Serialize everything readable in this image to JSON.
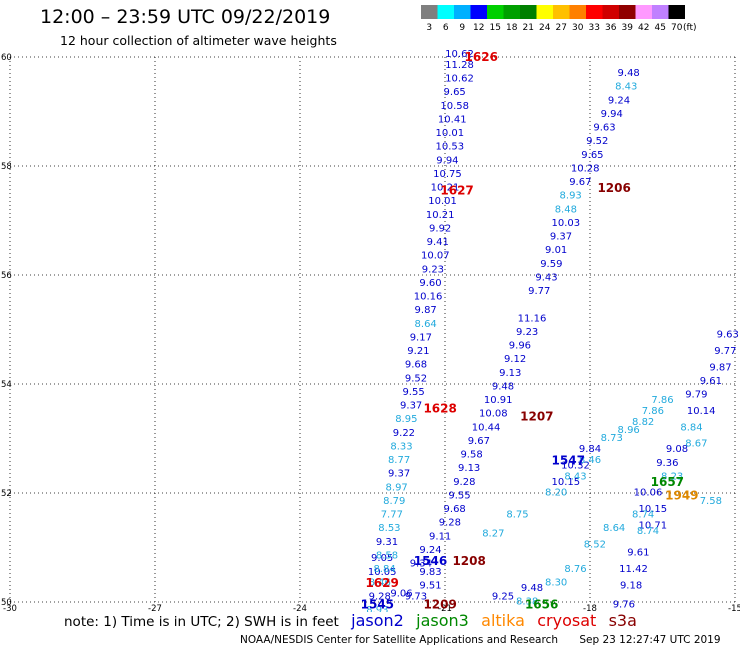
{
  "title": "12:00 – 23:59 UTC 09/22/2019",
  "subtitle": "12 hour collection of altimeter wave heights",
  "color_scale": {
    "labels": [
      "3",
      "6",
      "9",
      "12",
      "15",
      "18",
      "21",
      "24",
      "27",
      "30",
      "33",
      "36",
      "39",
      "42",
      "45",
      "70"
    ],
    "unit": "(ft)",
    "colors": [
      "#7f7f7f",
      "#00ffff",
      "#00b0ff",
      "#0000ff",
      "#00d000",
      "#00a000",
      "#008000",
      "#ffff00",
      "#ffc000",
      "#ff8000",
      "#ff0000",
      "#d00000",
      "#900000",
      "#ff99ff",
      "#c080ff",
      "#000000"
    ]
  },
  "axes": {
    "x_ticks": [
      "-30",
      "-27",
      "-24",
      "-21",
      "-18",
      "-15"
    ],
    "y_ticks": [
      "60",
      "58",
      "56",
      "54",
      "52",
      "50"
    ],
    "xlim": [
      -30,
      -15
    ],
    "ylim": [
      50,
      60
    ]
  },
  "passes": [
    {
      "sat": "jason2",
      "color": "#0000cc",
      "points": [
        [
          -20.7,
          60,
          "10.62"
        ],
        [
          -20.7,
          59.8,
          "11.28"
        ],
        [
          -20.7,
          59.55,
          "10.62"
        ],
        [
          -20.8,
          59.3,
          "9.65"
        ],
        [
          -20.8,
          59.05,
          "10.58"
        ],
        [
          -20.85,
          58.8,
          "10.41"
        ],
        [
          -20.9,
          58.55,
          "10.01"
        ],
        [
          -20.9,
          58.3,
          "10.53"
        ],
        [
          -20.95,
          58.05,
          "9.94"
        ],
        [
          -20.95,
          57.8,
          "10.75"
        ],
        [
          -21.0,
          57.55,
          "10.21"
        ],
        [
          -21.05,
          57.3,
          "10.01"
        ],
        [
          -21.1,
          57.05,
          "10.21"
        ],
        [
          -21.1,
          56.8,
          "9.92"
        ],
        [
          -21.15,
          56.55,
          "9.41"
        ],
        [
          -21.2,
          56.3,
          "10.07"
        ],
        [
          -21.25,
          56.05,
          "9.23"
        ],
        [
          -21.3,
          55.8,
          "9.60"
        ],
        [
          -21.35,
          55.55,
          "10.16"
        ],
        [
          -21.4,
          55.3,
          "9.87"
        ],
        [
          -21.5,
          54.8,
          "9.17"
        ],
        [
          -21.55,
          54.55,
          "9.21"
        ],
        [
          -21.6,
          54.3,
          "9.68"
        ],
        [
          -21.6,
          54.05,
          "9.52"
        ],
        [
          -21.65,
          53.8,
          "9.55"
        ],
        [
          -21.7,
          53.55,
          "9.37"
        ],
        [
          -21.85,
          53.05,
          "9.22"
        ],
        [
          -21.95,
          52.3,
          "9.37"
        ],
        [
          -22.2,
          51.05,
          "9.31"
        ],
        [
          -22.3,
          50.75,
          "9.05"
        ],
        [
          -22.3,
          50.5,
          "10.05"
        ],
        [
          -22.35,
          50.05,
          "9.28"
        ]
      ]
    },
    {
      "sat": "jason3",
      "color": "#22aadd",
      "points": [
        [
          -21.4,
          55.05,
          "8.64"
        ],
        [
          -21.8,
          53.3,
          "8.95"
        ],
        [
          -21.9,
          52.8,
          "8.33"
        ],
        [
          -21.95,
          52.55,
          "8.77"
        ],
        [
          -22.0,
          52.05,
          "8.97"
        ],
        [
          -22.05,
          51.8,
          "8.79"
        ],
        [
          -22.1,
          51.55,
          "7.77"
        ],
        [
          -22.15,
          51.3,
          "8.53"
        ],
        [
          -22.2,
          50.8,
          "8.58"
        ],
        [
          -22.25,
          50.55,
          "8.84"
        ],
        [
          -22.35,
          50.3,
          "8.46"
        ],
        [
          -22.4,
          49.8,
          "8.93"
        ]
      ]
    },
    {
      "sat": "jason2",
      "color": "#0000cc",
      "points": [
        [
          -17.2,
          59.65,
          "9.48"
        ],
        [
          -17.4,
          59.15,
          "9.24"
        ],
        [
          -17.55,
          58.9,
          "9.94"
        ],
        [
          -17.7,
          58.65,
          "9.63"
        ],
        [
          -17.85,
          58.4,
          "9.52"
        ],
        [
          -17.95,
          58.15,
          "9.65"
        ],
        [
          -18.1,
          57.9,
          "10.28"
        ],
        [
          -18.2,
          57.65,
          "9.67"
        ],
        [
          -18.5,
          56.9,
          "10.03"
        ],
        [
          -18.6,
          56.65,
          "9.37"
        ],
        [
          -18.7,
          56.4,
          "9.01"
        ],
        [
          -18.8,
          56.15,
          "9.59"
        ],
        [
          -18.9,
          55.9,
          "9.43"
        ],
        [
          -19.05,
          55.65,
          "9.77"
        ],
        [
          -19.2,
          55.15,
          "11.16"
        ],
        [
          -19.3,
          54.9,
          "9.23"
        ],
        [
          -19.45,
          54.65,
          "9.96"
        ],
        [
          -19.55,
          54.4,
          "9.12"
        ],
        [
          -19.65,
          54.15,
          "9.13"
        ],
        [
          -19.8,
          53.9,
          "9.48"
        ],
        [
          -19.9,
          53.65,
          "10.91"
        ],
        [
          -20.0,
          53.4,
          "10.08"
        ],
        [
          -20.15,
          53.15,
          "10.44"
        ],
        [
          -20.3,
          52.9,
          "9.67"
        ],
        [
          -20.45,
          52.65,
          "9.58"
        ],
        [
          -20.5,
          52.4,
          "9.13"
        ],
        [
          -20.6,
          52.15,
          "9.28"
        ],
        [
          -20.7,
          51.9,
          "9.55"
        ],
        [
          -20.8,
          51.65,
          "9.68"
        ],
        [
          -20.9,
          51.4,
          "9.28"
        ],
        [
          -21.1,
          51.15,
          "9.11"
        ],
        [
          -21.3,
          50.9,
          "9.24"
        ],
        [
          -21.5,
          50.65,
          "9.34"
        ]
      ]
    },
    {
      "sat": "jason3",
      "color": "#22aadd",
      "points": [
        [
          -17.25,
          59.4,
          "8.43"
        ],
        [
          -18.4,
          57.4,
          "8.93"
        ],
        [
          -18.5,
          57.15,
          "8.48"
        ]
      ]
    },
    {
      "sat": "jason2",
      "color": "#0000cc",
      "points": [
        [
          -21.6,
          50.05,
          "9.73"
        ],
        [
          -21.9,
          50.1,
          "9.06"
        ],
        [
          -21.3,
          50.25,
          "9.51"
        ],
        [
          -21.3,
          50.5,
          "9.83"
        ],
        [
          -19.8,
          50.05,
          "9.25"
        ],
        [
          -19.2,
          50.2,
          "9.48"
        ],
        [
          -18.5,
          52.15,
          "10.15"
        ],
        [
          -18.3,
          52.45,
          "10.32"
        ],
        [
          -18.0,
          52.75,
          "9.84"
        ],
        [
          -17.3,
          49.9,
          "9.76"
        ],
        [
          -17.15,
          50.25,
          "9.18"
        ],
        [
          -17.1,
          50.55,
          "11.42"
        ],
        [
          -17.0,
          50.85,
          "9.61"
        ],
        [
          -16.7,
          51.35,
          "10.71"
        ],
        [
          -16.7,
          51.65,
          "10.15"
        ],
        [
          -16.8,
          51.95,
          "10.06"
        ],
        [
          -16.4,
          52.5,
          "9.36"
        ],
        [
          -16.2,
          52.75,
          "9.08"
        ],
        [
          -15.8,
          53.75,
          "9.79"
        ],
        [
          -15.7,
          53.45,
          "10.14"
        ],
        [
          -15.5,
          54.0,
          "9.61"
        ],
        [
          -15.3,
          54.25,
          "9.87"
        ],
        [
          -15.2,
          54.55,
          "9.77"
        ],
        [
          -15.15,
          54.85,
          "9.63"
        ]
      ]
    },
    {
      "sat": "jason3",
      "color": "#22aadd",
      "points": [
        [
          -20.0,
          51.2,
          "8.27"
        ],
        [
          -19.5,
          51.55,
          "8.75"
        ],
        [
          -18.7,
          51.95,
          "8.20"
        ],
        [
          -18.3,
          52.25,
          "8.43"
        ],
        [
          -18.0,
          52.55,
          "8.46"
        ],
        [
          -17.55,
          52.95,
          "8.73"
        ],
        [
          -17.2,
          53.1,
          "8.96"
        ],
        [
          -16.9,
          53.25,
          "8.82"
        ],
        [
          -16.7,
          53.45,
          "7.86"
        ],
        [
          -16.5,
          53.65,
          "7.86"
        ],
        [
          -15.9,
          53.15,
          "8.84"
        ],
        [
          -15.8,
          52.85,
          "8.67"
        ],
        [
          -19.3,
          49.95,
          "8.38"
        ],
        [
          -18.7,
          50.3,
          "8.30"
        ],
        [
          -18.3,
          50.55,
          "8.76"
        ],
        [
          -17.9,
          51.0,
          "8.52"
        ],
        [
          -17.5,
          51.3,
          "8.64"
        ],
        [
          -16.9,
          51.55,
          "8.74"
        ],
        [
          -16.8,
          51.25,
          "8.74"
        ],
        [
          -16.3,
          52.25,
          "8.23"
        ],
        [
          -15.5,
          51.8,
          "7.58"
        ]
      ]
    }
  ],
  "markers": [
    {
      "label": "1626",
      "color": "#dd0000",
      "lon": -20.25,
      "lat": 60.0
    },
    {
      "label": "1627",
      "color": "#dd0000",
      "lon": -20.75,
      "lat": 57.55
    },
    {
      "label": "1628",
      "color": "#dd0000",
      "lon": -21.1,
      "lat": 53.55
    },
    {
      "label": "1629",
      "color": "#dd0000",
      "lon": -22.3,
      "lat": 50.35
    },
    {
      "label": "1545",
      "color": "#0000cc",
      "lon": -22.4,
      "lat": 49.95
    },
    {
      "label": "1546",
      "color": "#0000cc",
      "lon": -21.3,
      "lat": 50.75
    },
    {
      "label": "1547",
      "color": "#0000cc",
      "lon": -18.45,
      "lat": 52.6
    },
    {
      "label": "1206",
      "color": "#880000",
      "lon": -17.5,
      "lat": 57.6
    },
    {
      "label": "1207",
      "color": "#880000",
      "lon": -19.1,
      "lat": 53.4
    },
    {
      "label": "1208",
      "color": "#880000",
      "lon": -20.5,
      "lat": 50.75
    },
    {
      "label": "1209",
      "color": "#880000",
      "lon": -21.1,
      "lat": 49.95
    },
    {
      "label": "1656",
      "color": "#008800",
      "lon": -19.0,
      "lat": 49.95
    },
    {
      "label": "1657",
      "color": "#008800",
      "lon": -16.4,
      "lat": 52.2
    },
    {
      "label": "1949",
      "color": "#dd8800",
      "lon": -16.1,
      "lat": 51.95
    }
  ],
  "legend": {
    "note": "note: 1) Time is in UTC; 2) SWH is in feet",
    "satellites": [
      {
        "name": "jason2",
        "color": "#0000cc"
      },
      {
        "name": "jason3",
        "color": "#008800"
      },
      {
        "name": "altika",
        "color": "#ff8800"
      },
      {
        "name": "cryosat",
        "color": "#dd0000"
      },
      {
        "name": "s3a",
        "color": "#880000"
      }
    ]
  },
  "footer": {
    "org": "NOAA/NESDIS Center for Satellite Applications and Research",
    "timestamp": "Sep 23 12:27:47 UTC 2019"
  }
}
